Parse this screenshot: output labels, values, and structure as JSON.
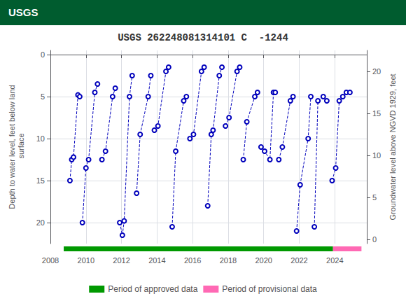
{
  "chart_data": {
    "type": "line",
    "title": "USGS 262248081314101 C  -1244",
    "annotations": [
      {
        "text": "USGS",
        "color": "#005C2F"
      }
    ],
    "ylabel": "Depth to water level, feet below land\n surface",
    "y2label": "Groundwater level above NGVD 1929, feet",
    "xlim": [
      2008.0,
      2025.8
    ],
    "xticks": [
      2008,
      2010,
      2012,
      2014,
      2016,
      2018,
      2020,
      2022,
      2024
    ],
    "ylim": [
      22.5,
      -0.5
    ],
    "yticks": [
      0,
      5,
      10,
      15,
      20
    ],
    "y2lim": [
      -0.5,
      22.5
    ],
    "y2ticks": [
      0,
      5,
      10,
      15,
      20
    ],
    "grid": true,
    "legend": "bottom",
    "color": "#0000BB",
    "line_style": "dashed",
    "marker": "open_circle",
    "series": [
      {
        "x": [
          2009.1,
          2009.2,
          2009.3,
          2009.55,
          2009.65
        ],
        "values": [
          15.0,
          12.5,
          12.2,
          4.8,
          5.0
        ]
      },
      {
        "x": [
          2009.8,
          2010.0,
          2010.15,
          2010.5,
          2010.65
        ],
        "values": [
          20.0,
          13.5,
          12.5,
          4.5,
          3.5
        ]
      },
      {
        "x": [
          2010.9,
          2011.1,
          2011.5,
          2011.65
        ],
        "values": [
          12.5,
          11.5,
          5.0,
          4.0
        ]
      },
      {
        "x": [
          2011.9,
          2012.05,
          2012.15,
          2012.45,
          2012.6
        ],
        "values": [
          20.0,
          21.5,
          19.8,
          5.0,
          2.5
        ]
      },
      {
        "x": [
          2012.85,
          2013.05,
          2013.5,
          2013.65
        ],
        "values": [
          16.5,
          9.5,
          5.0,
          2.5
        ]
      },
      {
        "x": [
          2013.85,
          2014.05,
          2014.5,
          2014.65
        ],
        "values": [
          9.0,
          8.5,
          2.0,
          1.5
        ]
      },
      {
        "x": [
          2014.85,
          2015.05,
          2015.5,
          2015.65
        ],
        "values": [
          20.5,
          11.5,
          5.5,
          5.0
        ]
      },
      {
        "x": [
          2015.85,
          2016.05,
          2016.5,
          2016.65
        ],
        "values": [
          10.0,
          9.5,
          2.0,
          1.5
        ]
      },
      {
        "x": [
          2016.85,
          2017.05,
          2017.15,
          2017.5,
          2017.65
        ],
        "values": [
          18.0,
          9.5,
          9.0,
          2.5,
          1.5
        ]
      },
      {
        "x": [
          2017.85,
          2018.05,
          2018.5,
          2018.65
        ],
        "values": [
          8.5,
          7.5,
          2.0,
          1.5
        ]
      },
      {
        "x": [
          2018.85,
          2019.05,
          2019.5,
          2019.65
        ],
        "values": [
          12.5,
          8.0,
          5.0,
          4.5
        ]
      },
      {
        "x": [
          2019.85,
          2020.05,
          2020.35,
          2020.55,
          2020.65
        ],
        "values": [
          11.0,
          11.5,
          12.5,
          4.5,
          4.5
        ]
      },
      {
        "x": [
          2020.85,
          2021.05,
          2021.5,
          2021.65
        ],
        "values": [
          12.5,
          11.0,
          5.5,
          5.0
        ]
      },
      {
        "x": [
          2021.85,
          2022.05,
          2022.5,
          2022.65
        ],
        "values": [
          21.0,
          15.5,
          10.0,
          5.0
        ]
      },
      {
        "x": [
          2022.85,
          2023.05,
          2023.35,
          2023.55
        ],
        "values": [
          20.5,
          5.5,
          5.0,
          5.5
        ]
      },
      {
        "x": [
          2023.85,
          2024.05,
          2024.25,
          2024.45,
          2024.65,
          2024.85
        ],
        "values": [
          15.0,
          13.5,
          5.5,
          5.0,
          4.5,
          4.5
        ]
      }
    ],
    "periods": [
      {
        "name": "Period of approved data",
        "color": "#009900",
        "range": [
          2008.75,
          2023.9
        ]
      },
      {
        "name": "Period of provisional data",
        "color": "#FF69B4",
        "range": [
          2023.9,
          2025.5
        ]
      }
    ]
  }
}
